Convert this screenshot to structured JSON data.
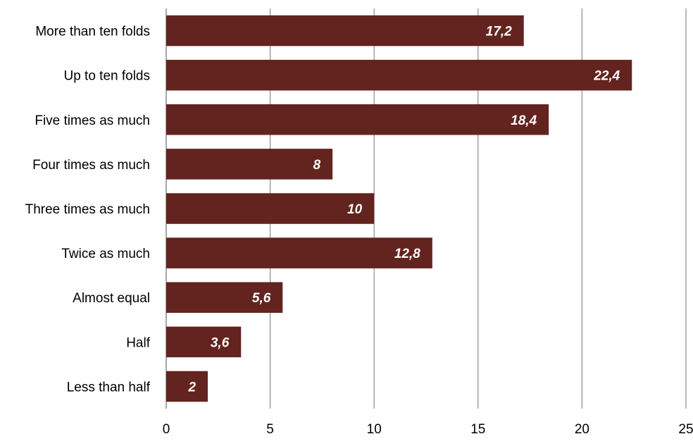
{
  "chart_data": {
    "type": "bar",
    "orientation": "horizontal",
    "categories": [
      "More than ten folds",
      "Up to ten folds",
      "Five times as much",
      "Four times as much",
      "Three times as much",
      "Twice as much",
      "Almost equal",
      "Half",
      "Less than half"
    ],
    "values": [
      17.2,
      22.4,
      18.4,
      8,
      10,
      12.8,
      5.6,
      3.6,
      2
    ],
    "data_labels": [
      "17,2",
      "22,4",
      "18,4",
      "8",
      "10",
      "12,8",
      "5,6",
      "3,6",
      "2"
    ],
    "xticks": [
      "0",
      "5",
      "10",
      "15",
      "20",
      "25"
    ],
    "xlim": [
      0,
      25
    ],
    "grid": "vertical",
    "legend": "none",
    "bar_color": "#63231f",
    "grid_color": "#8c8c8c"
  }
}
